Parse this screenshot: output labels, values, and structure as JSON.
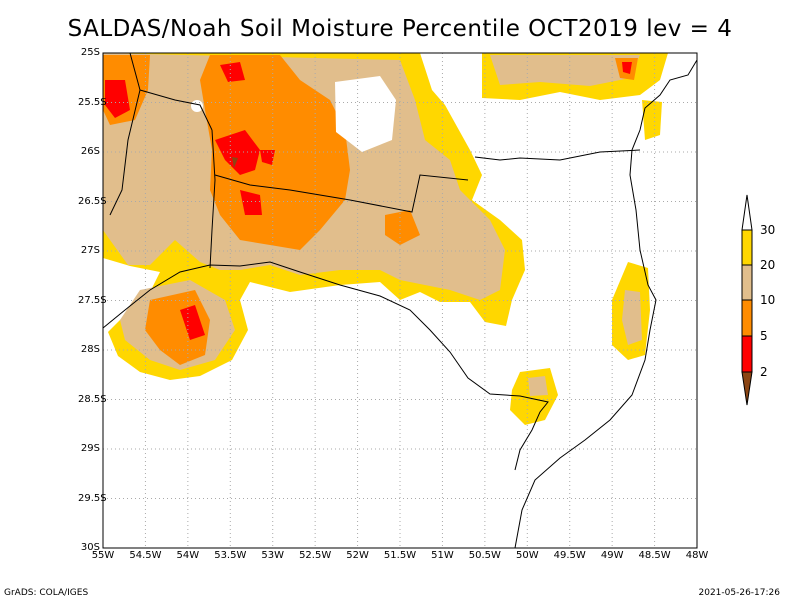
{
  "title": "SALDAS/Noah Soil Moisture Percentile OCT2019 lev = 4",
  "y_ticks": [
    "25S",
    "25.5S",
    "26S",
    "26.5S",
    "27S",
    "27.5S",
    "28S",
    "28.5S",
    "29S",
    "29.5S",
    "30S"
  ],
  "x_ticks": [
    "55W",
    "54.5W",
    "54W",
    "53.5W",
    "53W",
    "52.5W",
    "52W",
    "51.5W",
    "51W",
    "50.5W",
    "50W",
    "49.5W",
    "49W",
    "48.5W",
    "48W"
  ],
  "colorbar": {
    "labels": [
      "30",
      "20",
      "10",
      "5",
      "2"
    ],
    "colors": {
      "above_30": "#ffffff",
      "20_30": "#ffd700",
      "10_20": "#e1be8c",
      "5_10": "#ff8c00",
      "2_5": "#ff0000",
      "below_2": "#8b4513"
    }
  },
  "footer": {
    "left": "GrADS: COLA/IGES",
    "right": "2021-05-26-17:26"
  }
}
